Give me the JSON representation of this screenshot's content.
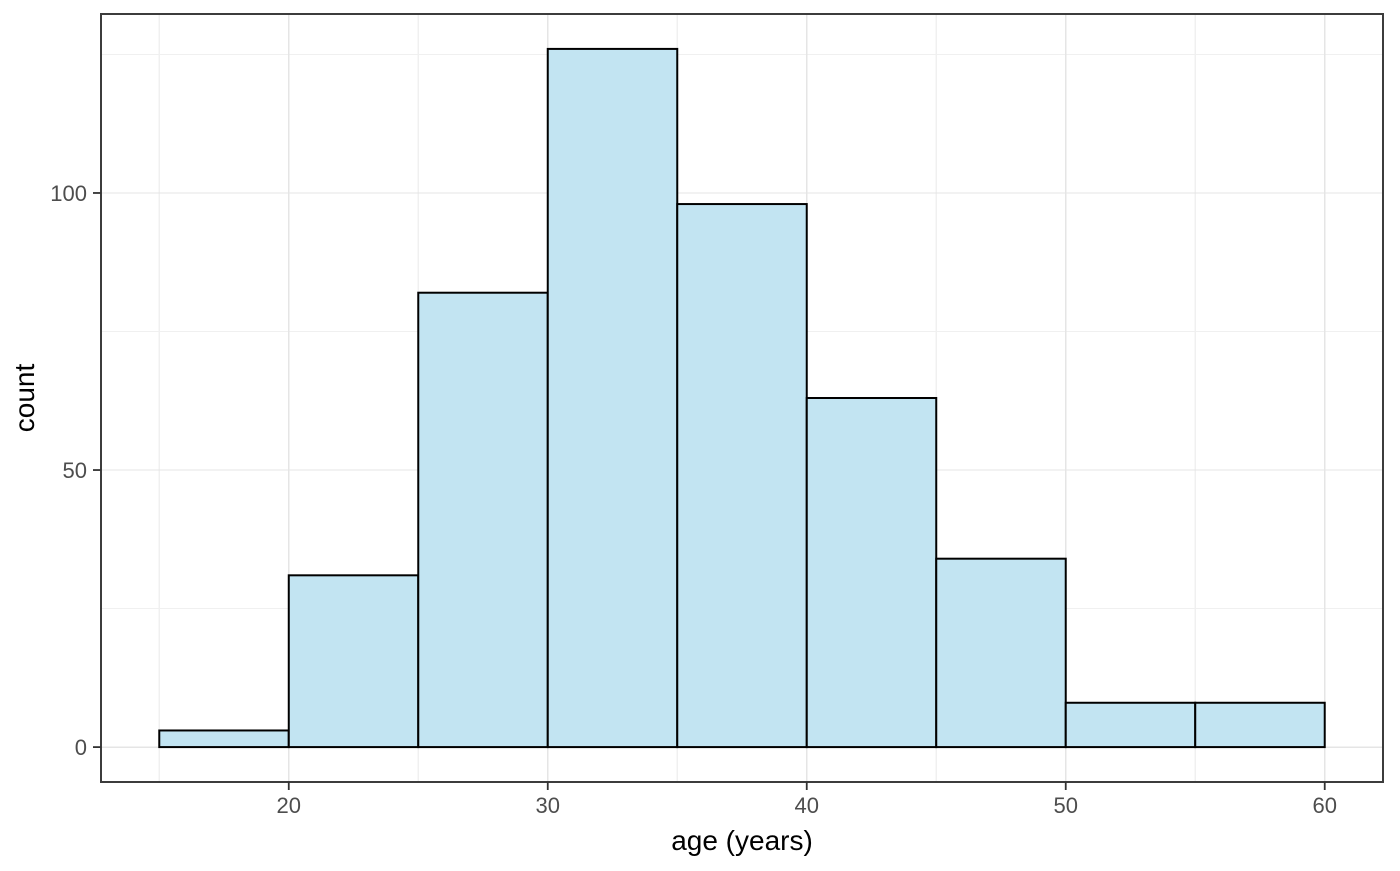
{
  "chart_data": {
    "type": "bar",
    "subtype": "histogram",
    "title": "",
    "xlabel": "age (years)",
    "ylabel": "count",
    "bin_width": 5,
    "bin_edges": [
      15,
      20,
      25,
      30,
      35,
      40,
      45,
      50,
      55,
      60
    ],
    "categories": [
      "15-20",
      "20-25",
      "25-30",
      "30-35",
      "35-40",
      "40-45",
      "45-50",
      "50-55",
      "55-60"
    ],
    "values": [
      3,
      31,
      82,
      126,
      98,
      63,
      34,
      8,
      8
    ],
    "x_major_ticks": [
      20,
      30,
      40,
      50,
      60
    ],
    "y_major_ticks": [
      0,
      50,
      100
    ],
    "x_minor_gridlines": [
      15,
      25,
      35,
      45,
      55
    ],
    "y_minor_gridlines": [
      25,
      75,
      125
    ],
    "xlim": [
      12.75,
      62.25
    ],
    "ylim": [
      -6.3,
      132.3
    ],
    "grid": true,
    "legend_position": "none"
  },
  "style": {
    "bar_fill": "#c2e4f2",
    "bar_stroke": "#000000",
    "panel_background": "#ffffff",
    "page_background": "#ffffff",
    "grid_major_color": "#e5e5e5",
    "grid_minor_color": "#f0f0f0",
    "panel_border_color": "#3c3c3c",
    "tick_mark_color": "#333333",
    "tick_label_color": "#4d4d4d",
    "axis_title_color": "#000000"
  }
}
